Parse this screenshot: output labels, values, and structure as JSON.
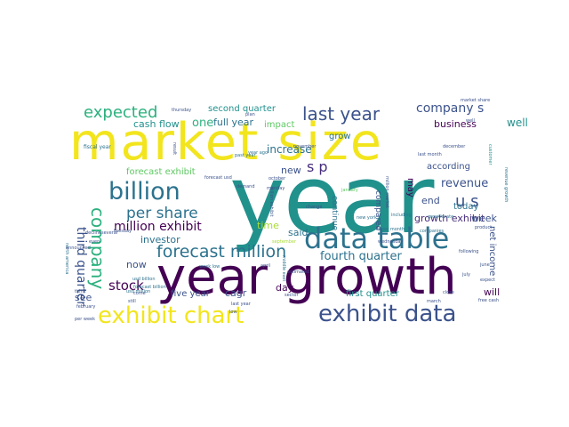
{
  "title": "",
  "palette": {
    "yellow": "#f2e51d",
    "lime": "#a8db34",
    "green": "#5ec962",
    "emerald": "#2cb17e",
    "teal": "#21918c",
    "steel": "#2c728e",
    "indigo": "#3b528b",
    "violet": "#472d7b",
    "purple": "#440154"
  },
  "words": [
    {
      "text": "year",
      "color": "#21918c"
    },
    {
      "text": "market size",
      "color": "#f2e51d"
    },
    {
      "text": "year growth",
      "color": "#440154"
    },
    {
      "text": "data table",
      "color": "#2c728e"
    },
    {
      "text": "exhibit data",
      "color": "#3b528b"
    },
    {
      "text": "exhibit chart",
      "color": "#f2e51d"
    },
    {
      "text": "billion",
      "color": "#2c728e"
    },
    {
      "text": "last year",
      "color": "#3b528b"
    },
    {
      "text": "forecast million",
      "color": "#2c728e"
    },
    {
      "text": "expected",
      "color": "#2cb17e"
    },
    {
      "text": "company",
      "color": "#2cb17e"
    },
    {
      "text": "per share",
      "color": "#2c728e"
    },
    {
      "text": "s p",
      "color": "#472d7b"
    },
    {
      "text": "u s",
      "color": "#3b528b"
    },
    {
      "text": "company s",
      "color": "#3b528b"
    },
    {
      "text": "million exhibit",
      "color": "#440154"
    },
    {
      "text": "third quarter",
      "color": "#3b528b"
    },
    {
      "text": "stock",
      "color": "#440154"
    },
    {
      "text": "revenue",
      "color": "#3b528b"
    },
    {
      "text": "fourth quarter",
      "color": "#2c728e"
    },
    {
      "text": "growth exhibit",
      "color": "#472d7b"
    },
    {
      "text": "second quarter",
      "color": "#21918c"
    },
    {
      "text": "cash flow",
      "color": "#21918c"
    },
    {
      "text": "one",
      "color": "#2cb17e"
    },
    {
      "text": "full year",
      "color": "#2c728e"
    },
    {
      "text": "impact",
      "color": "#5ec962"
    },
    {
      "text": "forecast exhibit",
      "color": "#5ec962"
    },
    {
      "text": "increase",
      "color": "#2c728e"
    },
    {
      "text": "business",
      "color": "#440154"
    },
    {
      "text": "well",
      "color": "#21918c"
    },
    {
      "text": "grow",
      "color": "#2c728e"
    },
    {
      "text": "new",
      "color": "#3b528b"
    },
    {
      "text": "time",
      "color": "#a8db34"
    },
    {
      "text": "said",
      "color": "#2c728e"
    },
    {
      "text": "investor",
      "color": "#2c728e"
    },
    {
      "text": "now",
      "color": "#3b528b"
    },
    {
      "text": "five year",
      "color": "#3b528b"
    },
    {
      "text": "cagr",
      "color": "#3b528b"
    },
    {
      "text": "day",
      "color": "#440154"
    },
    {
      "text": "see",
      "color": "#3b528b"
    },
    {
      "text": "first quarter",
      "color": "#21918c"
    },
    {
      "text": "will",
      "color": "#440154"
    },
    {
      "text": "according",
      "color": "#3b528b"
    },
    {
      "text": "week",
      "color": "#3b528b"
    },
    {
      "text": "end",
      "color": "#3b528b"
    },
    {
      "text": "today",
      "color": "#2c728e"
    },
    {
      "text": "may",
      "color": "#440154"
    },
    {
      "text": "net income",
      "color": "#3b528b"
    },
    {
      "text": "continue",
      "color": "#2c728e"
    },
    {
      "text": "compared",
      "color": "#3b528b"
    },
    {
      "text": "fiscal year",
      "color": "#2c728e"
    },
    {
      "text": "new york",
      "color": "#2c728e"
    },
    {
      "text": "past year",
      "color": "#2c728e"
    },
    {
      "text": "year ago",
      "color": "#2c728e"
    },
    {
      "text": "usd million",
      "color": "#2c728e"
    },
    {
      "text": "usd billion",
      "color": "#2c728e"
    },
    {
      "text": "forecast billion",
      "color": "#2c728e"
    },
    {
      "text": "week low",
      "color": "#2c728e"
    },
    {
      "text": "including",
      "color": "#2c728e"
    },
    {
      "text": "three month",
      "color": "#2c728e"
    },
    {
      "text": "companies",
      "color": "#2c728e"
    },
    {
      "text": "growth rate",
      "color": "#2c728e"
    },
    {
      "text": "revenue growth",
      "color": "#2c728e"
    },
    {
      "text": "middle east",
      "color": "#2c728e"
    },
    {
      "text": "north america",
      "color": "#2c728e"
    },
    {
      "text": "thursday",
      "color": "#3b528b"
    },
    {
      "text": "november",
      "color": "#3b528b"
    },
    {
      "text": "december",
      "color": "#3b528b"
    },
    {
      "text": "october",
      "color": "#3b528b"
    },
    {
      "text": "january",
      "color": "#5ec962"
    },
    {
      "text": "september",
      "color": "#a8db34"
    },
    {
      "text": "wednesday",
      "color": "#3b528b"
    },
    {
      "text": "june",
      "color": "#3b528b"
    },
    {
      "text": "july",
      "color": "#3b528b"
    },
    {
      "text": "march",
      "color": "#3b528b"
    },
    {
      "text": "april",
      "color": "#3b528b"
    },
    {
      "text": "estimated",
      "color": "#3b528b"
    },
    {
      "text": "close",
      "color": "#3b528b"
    },
    {
      "text": "free cash",
      "color": "#3b528b"
    },
    {
      "text": "last month",
      "color": "#3b528b"
    },
    {
      "text": "market share",
      "color": "#3b528b"
    },
    {
      "text": "announced",
      "color": "#3b528b"
    },
    {
      "text": "billion exhibit",
      "color": "#3b528b"
    },
    {
      "text": "million market",
      "color": "#3b528b"
    },
    {
      "text": "change",
      "color": "#3b528b"
    },
    {
      "text": "product",
      "color": "#3b528b"
    },
    {
      "text": "customer",
      "color": "#21918c"
    },
    {
      "text": "plan",
      "color": "#3b528b"
    },
    {
      "text": "result",
      "color": "#3b528b"
    },
    {
      "text": "think",
      "color": "#3b528b"
    },
    {
      "text": "decline",
      "color": "#3b528b"
    },
    {
      "text": "even",
      "color": "#3b528b"
    },
    {
      "text": "still",
      "color": "#3b528b"
    },
    {
      "text": "come",
      "color": "#3b528b"
    },
    {
      "text": "february",
      "color": "#3b528b"
    },
    {
      "text": "per week",
      "color": "#3b528b"
    },
    {
      "text": "forecast usd",
      "color": "#3b528b"
    },
    {
      "text": "last year",
      "color": "#3b528b"
    },
    {
      "text": "several",
      "color": "#3b528b"
    },
    {
      "text": "sector",
      "color": "#3b528b"
    },
    {
      "text": "tuesday",
      "color": "#3b528b"
    },
    {
      "text": "demand",
      "color": "#3b528b"
    },
    {
      "text": "following",
      "color": "#3b528b"
    },
    {
      "text": "expect",
      "color": "#3b528b"
    },
    {
      "text": "monday",
      "color": "#3b528b"
    },
    {
      "text": "well",
      "color": "#3b528b"
    },
    {
      "text": "low",
      "color": "#3b528b"
    }
  ]
}
